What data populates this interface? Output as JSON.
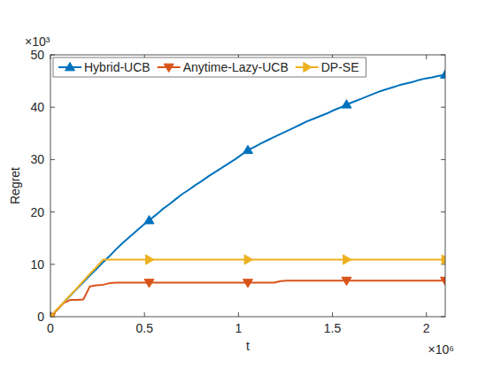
{
  "chart_data": {
    "type": "line",
    "x_label": "t",
    "y_label": "Regret",
    "x_scale_label": "×10⁶",
    "y_scale_label": "×10³",
    "x": [
      0,
      0.035,
      0.07,
      0.105,
      0.14,
      0.175,
      0.21,
      0.245,
      0.28,
      0.315,
      0.35,
      0.385,
      0.42,
      0.455,
      0.49,
      0.525,
      0.56,
      0.595,
      0.63,
      0.665,
      0.7,
      0.735,
      0.77,
      0.805,
      0.84,
      0.875,
      0.91,
      0.945,
      0.98,
      1.015,
      1.05,
      1.085,
      1.12,
      1.155,
      1.19,
      1.225,
      1.26,
      1.295,
      1.33,
      1.365,
      1.4,
      1.435,
      1.47,
      1.505,
      1.54,
      1.575,
      1.61,
      1.645,
      1.68,
      1.715,
      1.75,
      1.785,
      1.82,
      1.855,
      1.89,
      1.925,
      1.96,
      1.995,
      2.03,
      2.065,
      2.1
    ],
    "series": [
      {
        "name": "Hybrid-UCB",
        "color": "#0072bd",
        "marker": "triangle-up",
        "values": [
          0,
          1.3,
          2.7,
          4.0,
          5.3,
          6.6,
          7.9,
          9.1,
          10.4,
          11.6,
          12.9,
          14.1,
          15.2,
          16.3,
          17.4,
          18.4,
          19.4,
          20.5,
          21.4,
          22.4,
          23.4,
          24.2,
          25.1,
          25.9,
          26.8,
          27.6,
          28.4,
          29.2,
          30.0,
          30.9,
          31.8,
          32.4,
          33.1,
          33.7,
          34.3,
          34.9,
          35.5,
          36.1,
          36.7,
          37.3,
          37.8,
          38.3,
          38.8,
          39.4,
          39.9,
          40.5,
          41.0,
          41.5,
          42.0,
          42.5,
          43.0,
          43.4,
          43.8,
          44.2,
          44.5,
          44.8,
          45.2,
          45.5,
          45.7,
          46.0,
          46.2
        ]
      },
      {
        "name": "Anytime-Lazy-UCB",
        "color": "#d95319",
        "marker": "triangle-down",
        "values": [
          0,
          1.3,
          2.6,
          3.2,
          3.2,
          3.3,
          5.8,
          6.0,
          6.1,
          6.4,
          6.5,
          6.5,
          6.5,
          6.5,
          6.5,
          6.5,
          6.5,
          6.5,
          6.5,
          6.5,
          6.5,
          6.5,
          6.5,
          6.5,
          6.5,
          6.5,
          6.5,
          6.5,
          6.5,
          6.5,
          6.5,
          6.5,
          6.5,
          6.5,
          6.5,
          6.8,
          6.9,
          6.9,
          6.9,
          6.9,
          6.9,
          6.9,
          6.9,
          6.9,
          6.9,
          6.9,
          6.9,
          6.9,
          6.9,
          6.9,
          6.9,
          6.9,
          6.9,
          6.9,
          6.9,
          6.9,
          6.9,
          6.9,
          6.9,
          6.9,
          6.9
        ]
      },
      {
        "name": "DP-SE",
        "color": "#edb120",
        "marker": "triangle-right",
        "values": [
          0,
          1.4,
          2.7,
          4.1,
          5.4,
          6.8,
          8.2,
          9.5,
          10.9,
          10.9,
          10.9,
          10.9,
          10.9,
          10.9,
          10.9,
          10.9,
          10.9,
          10.9,
          10.9,
          10.9,
          10.9,
          10.9,
          10.9,
          10.9,
          10.9,
          10.9,
          10.9,
          10.9,
          10.9,
          10.9,
          10.9,
          10.9,
          10.9,
          10.9,
          10.9,
          10.9,
          10.9,
          10.9,
          10.9,
          10.9,
          10.9,
          10.9,
          10.9,
          10.9,
          10.9,
          10.9,
          10.9,
          10.9,
          10.9,
          10.9,
          10.9,
          10.9,
          10.9,
          10.9,
          10.9,
          10.9,
          10.9,
          10.9,
          10.9,
          10.9,
          10.9
        ]
      }
    ],
    "xlim": [
      0,
      2.1
    ],
    "xticks": [
      0,
      0.5,
      1,
      1.5,
      2
    ],
    "ylim": [
      0,
      50
    ],
    "yticks": [
      0,
      10,
      20,
      30,
      40,
      50
    ],
    "grid": false,
    "legend": "upper left"
  }
}
